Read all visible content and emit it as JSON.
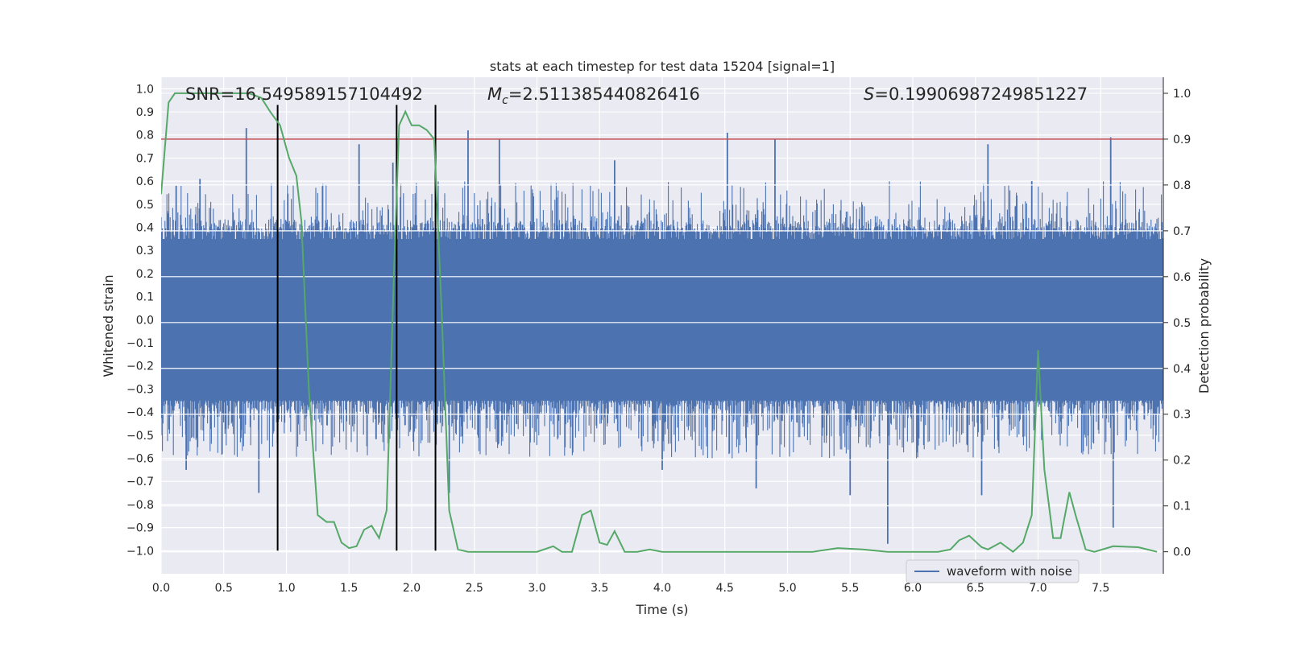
{
  "chart_data": {
    "type": "line",
    "title": "stats at each timestep for test data 15204 [signal=1]",
    "xlabel": "Time (s)",
    "ylabel": "Whitened strain",
    "y2label": "Detection probability",
    "xlim": [
      0.0,
      8.0
    ],
    "ylim": [
      -1.1,
      1.05
    ],
    "y2lim": [
      -0.048,
      1.035
    ],
    "xticks": [
      "0.0",
      "0.5",
      "1.0",
      "1.5",
      "2.0",
      "2.5",
      "3.0",
      "3.5",
      "4.0",
      "4.5",
      "5.0",
      "5.5",
      "6.0",
      "6.5",
      "7.0",
      "7.5"
    ],
    "yticks": [
      "1.0",
      "0.9",
      "0.8",
      "0.7",
      "0.6",
      "0.5",
      "0.4",
      "0.3",
      "0.2",
      "0.1",
      "0.0",
      "-0.1",
      "-0.2",
      "-0.3",
      "-0.4",
      "-0.5",
      "-0.6",
      "-0.7",
      "-0.8",
      "-0.9",
      "-1.0"
    ],
    "y2ticks": [
      "1.0",
      "0.9",
      "0.8",
      "0.7",
      "0.6",
      "0.5",
      "0.4",
      "0.3",
      "0.2",
      "0.1",
      "0.0"
    ],
    "grid": true,
    "legend": {
      "position": "bottom-right",
      "entries": [
        "waveform with noise"
      ]
    },
    "annotations": {
      "snr": "SNR=16.549589157104492",
      "mc_symbol": "M",
      "mc_sub": "c",
      "mc_value": "=2.511385440826416",
      "s_symbol": "S",
      "s_value": "=0.19906987249851227"
    },
    "threshold": {
      "axis": "right",
      "value": 0.9,
      "color": "#c44e52"
    },
    "vertical_lines": {
      "x": [
        0.93,
        1.88,
        2.19
      ],
      "y_from": -1.0,
      "y_to": 0.93,
      "color": "#000000"
    },
    "waveform": {
      "name": "waveform with noise",
      "color": "#4c72b0",
      "x_range": [
        0.0,
        8.0
      ],
      "core_band": [
        -0.35,
        0.38
      ],
      "typical_peaks": [
        -0.6,
        0.6
      ],
      "spikes": [
        {
          "x": 0.12,
          "y": 0.58
        },
        {
          "x": 0.31,
          "y": 0.61
        },
        {
          "x": 0.68,
          "y": 0.83
        },
        {
          "x": 0.78,
          "y": -0.75
        },
        {
          "x": 1.58,
          "y": 0.76
        },
        {
          "x": 1.85,
          "y": 0.68
        },
        {
          "x": 2.45,
          "y": 0.82
        },
        {
          "x": 2.7,
          "y": 0.78
        },
        {
          "x": 3.62,
          "y": 0.69
        },
        {
          "x": 4.0,
          "y": -0.65
        },
        {
          "x": 4.52,
          "y": 0.81
        },
        {
          "x": 4.9,
          "y": 0.78
        },
        {
          "x": 4.75,
          "y": -0.73
        },
        {
          "x": 5.5,
          "y": -0.76
        },
        {
          "x": 5.8,
          "y": -0.97
        },
        {
          "x": 6.6,
          "y": 0.76
        },
        {
          "x": 6.55,
          "y": -0.76
        },
        {
          "x": 7.58,
          "y": 0.79
        },
        {
          "x": 7.6,
          "y": -0.9
        },
        {
          "x": 6.95,
          "y": 0.6
        },
        {
          "x": 0.2,
          "y": -0.65
        },
        {
          "x": 2.3,
          "y": -0.75
        }
      ]
    },
    "detection_probability": {
      "color": "#55a868",
      "x": [
        0.0,
        0.06,
        0.11,
        0.2,
        0.3,
        0.4,
        0.5,
        0.6,
        0.7,
        0.8,
        0.87,
        0.95,
        1.02,
        1.08,
        1.12,
        1.18,
        1.25,
        1.32,
        1.38,
        1.44,
        1.5,
        1.56,
        1.62,
        1.68,
        1.74,
        1.8,
        1.86,
        1.9,
        1.95,
        2.0,
        2.06,
        2.12,
        2.18,
        2.24,
        2.3,
        2.37,
        2.45,
        2.6,
        2.8,
        3.0,
        3.13,
        3.2,
        3.28,
        3.36,
        3.43,
        3.5,
        3.56,
        3.62,
        3.7,
        3.8,
        3.9,
        4.0,
        4.2,
        4.5,
        4.8,
        5.0,
        5.2,
        5.4,
        5.6,
        5.8,
        6.0,
        6.2,
        6.3,
        6.37,
        6.45,
        6.55,
        6.6,
        6.7,
        6.75,
        6.8,
        6.88,
        6.95,
        7.0,
        7.05,
        7.12,
        7.18,
        7.25,
        7.3,
        7.38,
        7.45,
        7.6,
        7.8,
        7.95
      ],
      "y": [
        0.78,
        0.98,
        1.0,
        1.0,
        1.0,
        1.0,
        1.0,
        1.0,
        1.0,
        0.99,
        0.96,
        0.93,
        0.86,
        0.82,
        0.72,
        0.35,
        0.08,
        0.065,
        0.065,
        0.02,
        0.008,
        0.012,
        0.048,
        0.057,
        0.03,
        0.09,
        0.62,
        0.93,
        0.96,
        0.93,
        0.93,
        0.92,
        0.9,
        0.52,
        0.09,
        0.005,
        0.0,
        0.0,
        0.0,
        0.0,
        0.012,
        0.0,
        0.0,
        0.08,
        0.09,
        0.02,
        0.015,
        0.045,
        0.0,
        0.0,
        0.005,
        0.0,
        0.0,
        0.0,
        0.0,
        0.0,
        0.0,
        0.008,
        0.005,
        0.0,
        0.0,
        0.0,
        0.005,
        0.025,
        0.035,
        0.01,
        0.005,
        0.02,
        0.01,
        0.0,
        0.02,
        0.08,
        0.44,
        0.18,
        0.03,
        0.03,
        0.13,
        0.08,
        0.005,
        0.0,
        0.012,
        0.01,
        0.0
      ]
    }
  }
}
